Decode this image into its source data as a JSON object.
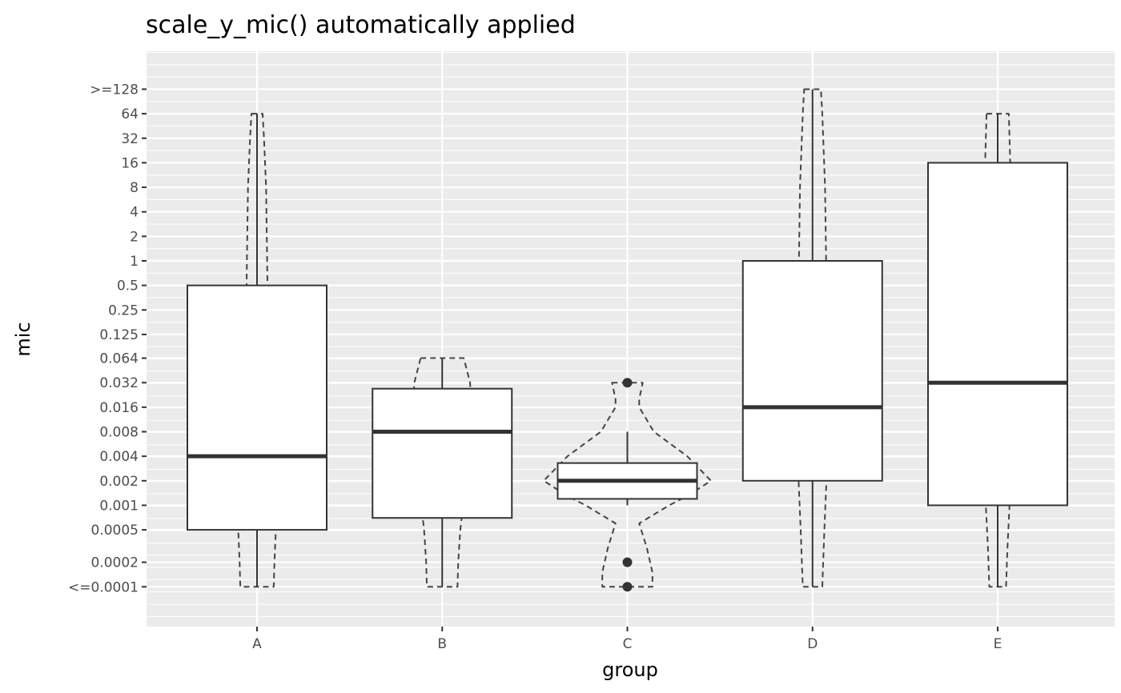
{
  "chart_data": {
    "type": "boxplot+violin",
    "title": "scale_y_mic() automatically applied",
    "xlabel": "group",
    "ylabel": "mic",
    "y_scale": "log2",
    "grid": true,
    "y_ticks": [
      {
        "label": ">=128",
        "value": 128
      },
      {
        "label": "64",
        "value": 64
      },
      {
        "label": "32",
        "value": 32
      },
      {
        "label": "16",
        "value": 16
      },
      {
        "label": "8",
        "value": 8
      },
      {
        "label": "4",
        "value": 4
      },
      {
        "label": "2",
        "value": 2
      },
      {
        "label": "1",
        "value": 1
      },
      {
        "label": "0.5",
        "value": 0.5
      },
      {
        "label": "0.25",
        "value": 0.25
      },
      {
        "label": "0.125",
        "value": 0.125
      },
      {
        "label": "0.064",
        "value": 0.064
      },
      {
        "label": "0.032",
        "value": 0.032
      },
      {
        "label": "0.016",
        "value": 0.016
      },
      {
        "label": "0.008",
        "value": 0.008
      },
      {
        "label": "0.004",
        "value": 0.004
      },
      {
        "label": "0.002",
        "value": 0.002
      },
      {
        "label": "0.001",
        "value": 0.001
      },
      {
        "label": "0.0005",
        "value": 0.0005
      },
      {
        "label": "0.0002",
        "value": 0.0002
      },
      {
        "label": "<=0.0001",
        "value": 0.0001
      }
    ],
    "categories": [
      "A",
      "B",
      "C",
      "D",
      "E"
    ],
    "boxes": [
      {
        "group": "A",
        "lower_whisker": 0.0001,
        "q1": 0.0005,
        "median": 0.004,
        "q3": 0.5,
        "upper_whisker": 64,
        "outliers": []
      },
      {
        "group": "B",
        "lower_whisker": 0.0001,
        "q1": 0.0007,
        "median": 0.008,
        "q3": 0.027,
        "upper_whisker": 0.064,
        "outliers": []
      },
      {
        "group": "C",
        "lower_whisker": 0.001,
        "q1": 0.0012,
        "median": 0.002,
        "q3": 0.0033,
        "upper_whisker": 0.008,
        "outliers": [
          0.032,
          0.0002,
          0.0001
        ]
      },
      {
        "group": "D",
        "lower_whisker": 0.0001,
        "q1": 0.002,
        "median": 0.016,
        "q3": 1,
        "upper_whisker": 128,
        "outliers": []
      },
      {
        "group": "E",
        "lower_whisker": 0.0001,
        "q1": 0.001,
        "median": 0.032,
        "q3": 16,
        "upper_whisker": 64,
        "outliers": []
      }
    ],
    "violins": [
      {
        "group": "A",
        "density": [
          [
            64,
            0.08
          ],
          [
            32,
            0.1
          ],
          [
            8,
            0.13
          ],
          [
            0.5,
            0.15
          ],
          [
            0.032,
            0.2
          ],
          [
            0.004,
            0.28
          ],
          [
            0.001,
            0.28
          ],
          [
            0.0005,
            0.27
          ],
          [
            0.0002,
            0.25
          ],
          [
            0.0001,
            0.24
          ]
        ]
      },
      {
        "group": "B",
        "density": [
          [
            0.064,
            0.31
          ],
          [
            0.032,
            0.4
          ],
          [
            0.016,
            0.42
          ],
          [
            0.004,
            0.38
          ],
          [
            0.002,
            0.34
          ],
          [
            0.0005,
            0.26
          ],
          [
            0.0002,
            0.23
          ],
          [
            0.0001,
            0.22
          ]
        ]
      },
      {
        "group": "C",
        "density": [
          [
            0.032,
            0.22
          ],
          [
            0.02,
            0.17
          ],
          [
            0.016,
            0.17
          ],
          [
            0.008,
            0.38
          ],
          [
            0.004,
            0.86
          ],
          [
            0.002,
            1.2
          ],
          [
            0.0013,
            0.86
          ],
          [
            0.001,
            0.6
          ],
          [
            0.0006,
            0.17
          ],
          [
            0.0003,
            0.28
          ],
          [
            0.00015,
            0.36
          ],
          [
            0.0001,
            0.36
          ]
        ]
      },
      {
        "group": "D",
        "density": [
          [
            128,
            0.12
          ],
          [
            64,
            0.14
          ],
          [
            8,
            0.18
          ],
          [
            0.5,
            0.2
          ],
          [
            0.016,
            0.21
          ],
          [
            0.002,
            0.2
          ],
          [
            0.0005,
            0.17
          ],
          [
            0.0001,
            0.14
          ]
        ]
      },
      {
        "group": "E",
        "density": [
          [
            64,
            0.16
          ],
          [
            16,
            0.18
          ],
          [
            1,
            0.19
          ],
          [
            0.032,
            0.19
          ],
          [
            0.001,
            0.17
          ],
          [
            0.0003,
            0.14
          ],
          [
            0.0001,
            0.12
          ]
        ]
      }
    ],
    "colors": {
      "panel": "#ebebeb",
      "grid": "#ffffff",
      "box": "#333333",
      "violin": "#444444",
      "box_fill": "#ffffff"
    }
  }
}
